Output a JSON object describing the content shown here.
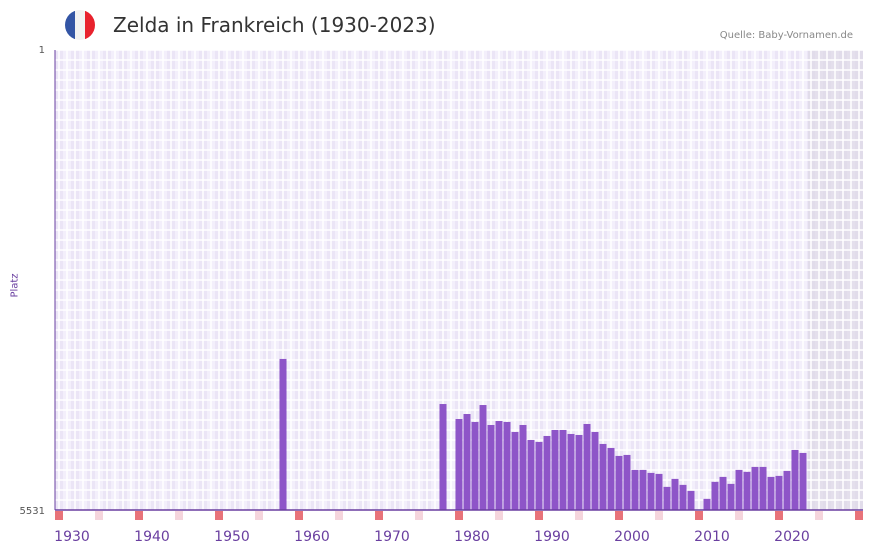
{
  "header": {
    "title": "Zelda in Frankreich (1930-2023)",
    "source": "Quelle: Baby-Vornamen.de",
    "flag": "france-flag-icon"
  },
  "colors": {
    "bar": "#8e55c8",
    "axis": "#6a3fa0",
    "marker": "#e8737a"
  },
  "chart_data": {
    "type": "bar",
    "title": "Zelda in Frankreich (1930-2023)",
    "xlabel": "",
    "ylabel": "Platz",
    "ylim": [
      1,
      5531
    ],
    "y_inverted": true,
    "ytick_labels": [
      "1",
      "5531"
    ],
    "xlim": [
      1928,
      2028
    ],
    "xtick_labels": [
      "1930",
      "1940",
      "1950",
      "1960",
      "1970",
      "1980",
      "1990",
      "2000",
      "2010",
      "2020"
    ],
    "x": [
      1956,
      1976,
      1978,
      1979,
      1980,
      1981,
      1982,
      1983,
      1984,
      1985,
      1986,
      1987,
      1988,
      1989,
      1990,
      1991,
      1992,
      1993,
      1994,
      1995,
      1996,
      1997,
      1998,
      1999,
      2000,
      2001,
      2002,
      2003,
      2004,
      2005,
      2006,
      2007,
      2009,
      2010,
      2011,
      2012,
      2013,
      2014,
      2015,
      2016,
      2017,
      2018,
      2019,
      2020,
      2021
    ],
    "values": [
      3715,
      4257,
      4437,
      4377,
      4473,
      4269,
      4509,
      4461,
      4473,
      4593,
      4509,
      4689,
      4713,
      4641,
      4569,
      4569,
      4617,
      4629,
      4497,
      4593,
      4737,
      4785,
      4881,
      4869,
      5049,
      5049,
      5085,
      5097,
      5253,
      5157,
      5229,
      5301,
      5397,
      5193,
      5133,
      5217,
      5049,
      5073,
      5013,
      5013,
      5133,
      5121,
      5061,
      4809,
      4845
    ],
    "grid": true
  }
}
